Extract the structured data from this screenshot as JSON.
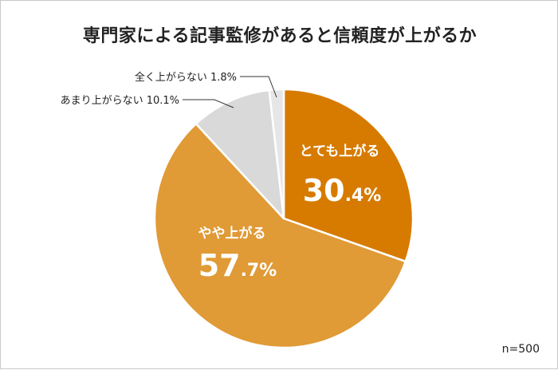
{
  "chart_data": {
    "type": "pie",
    "title": "専門家による記事監修があると信頼度が上がるか",
    "sample": "n=500",
    "slices": [
      {
        "label": "とても上がる",
        "value": 30.4,
        "display_int": "30",
        "display_dec": ".4%",
        "color": "#d67b00",
        "label_style": "inside"
      },
      {
        "label": "やや上がる",
        "value": 57.7,
        "display_int": "57",
        "display_dec": ".7%",
        "color": "#e09a36",
        "label_style": "inside"
      },
      {
        "label": "あまり上がらない",
        "value": 10.1,
        "display": "10.1%",
        "color": "#d9d9d9",
        "label_style": "callout"
      },
      {
        "label": "全く上がらない",
        "value": 1.8,
        "display": "1.8%",
        "color": "#e6e6e6",
        "label_style": "callout"
      }
    ],
    "legend": "none",
    "start": "12 o'clock",
    "direction": "clockwise"
  }
}
